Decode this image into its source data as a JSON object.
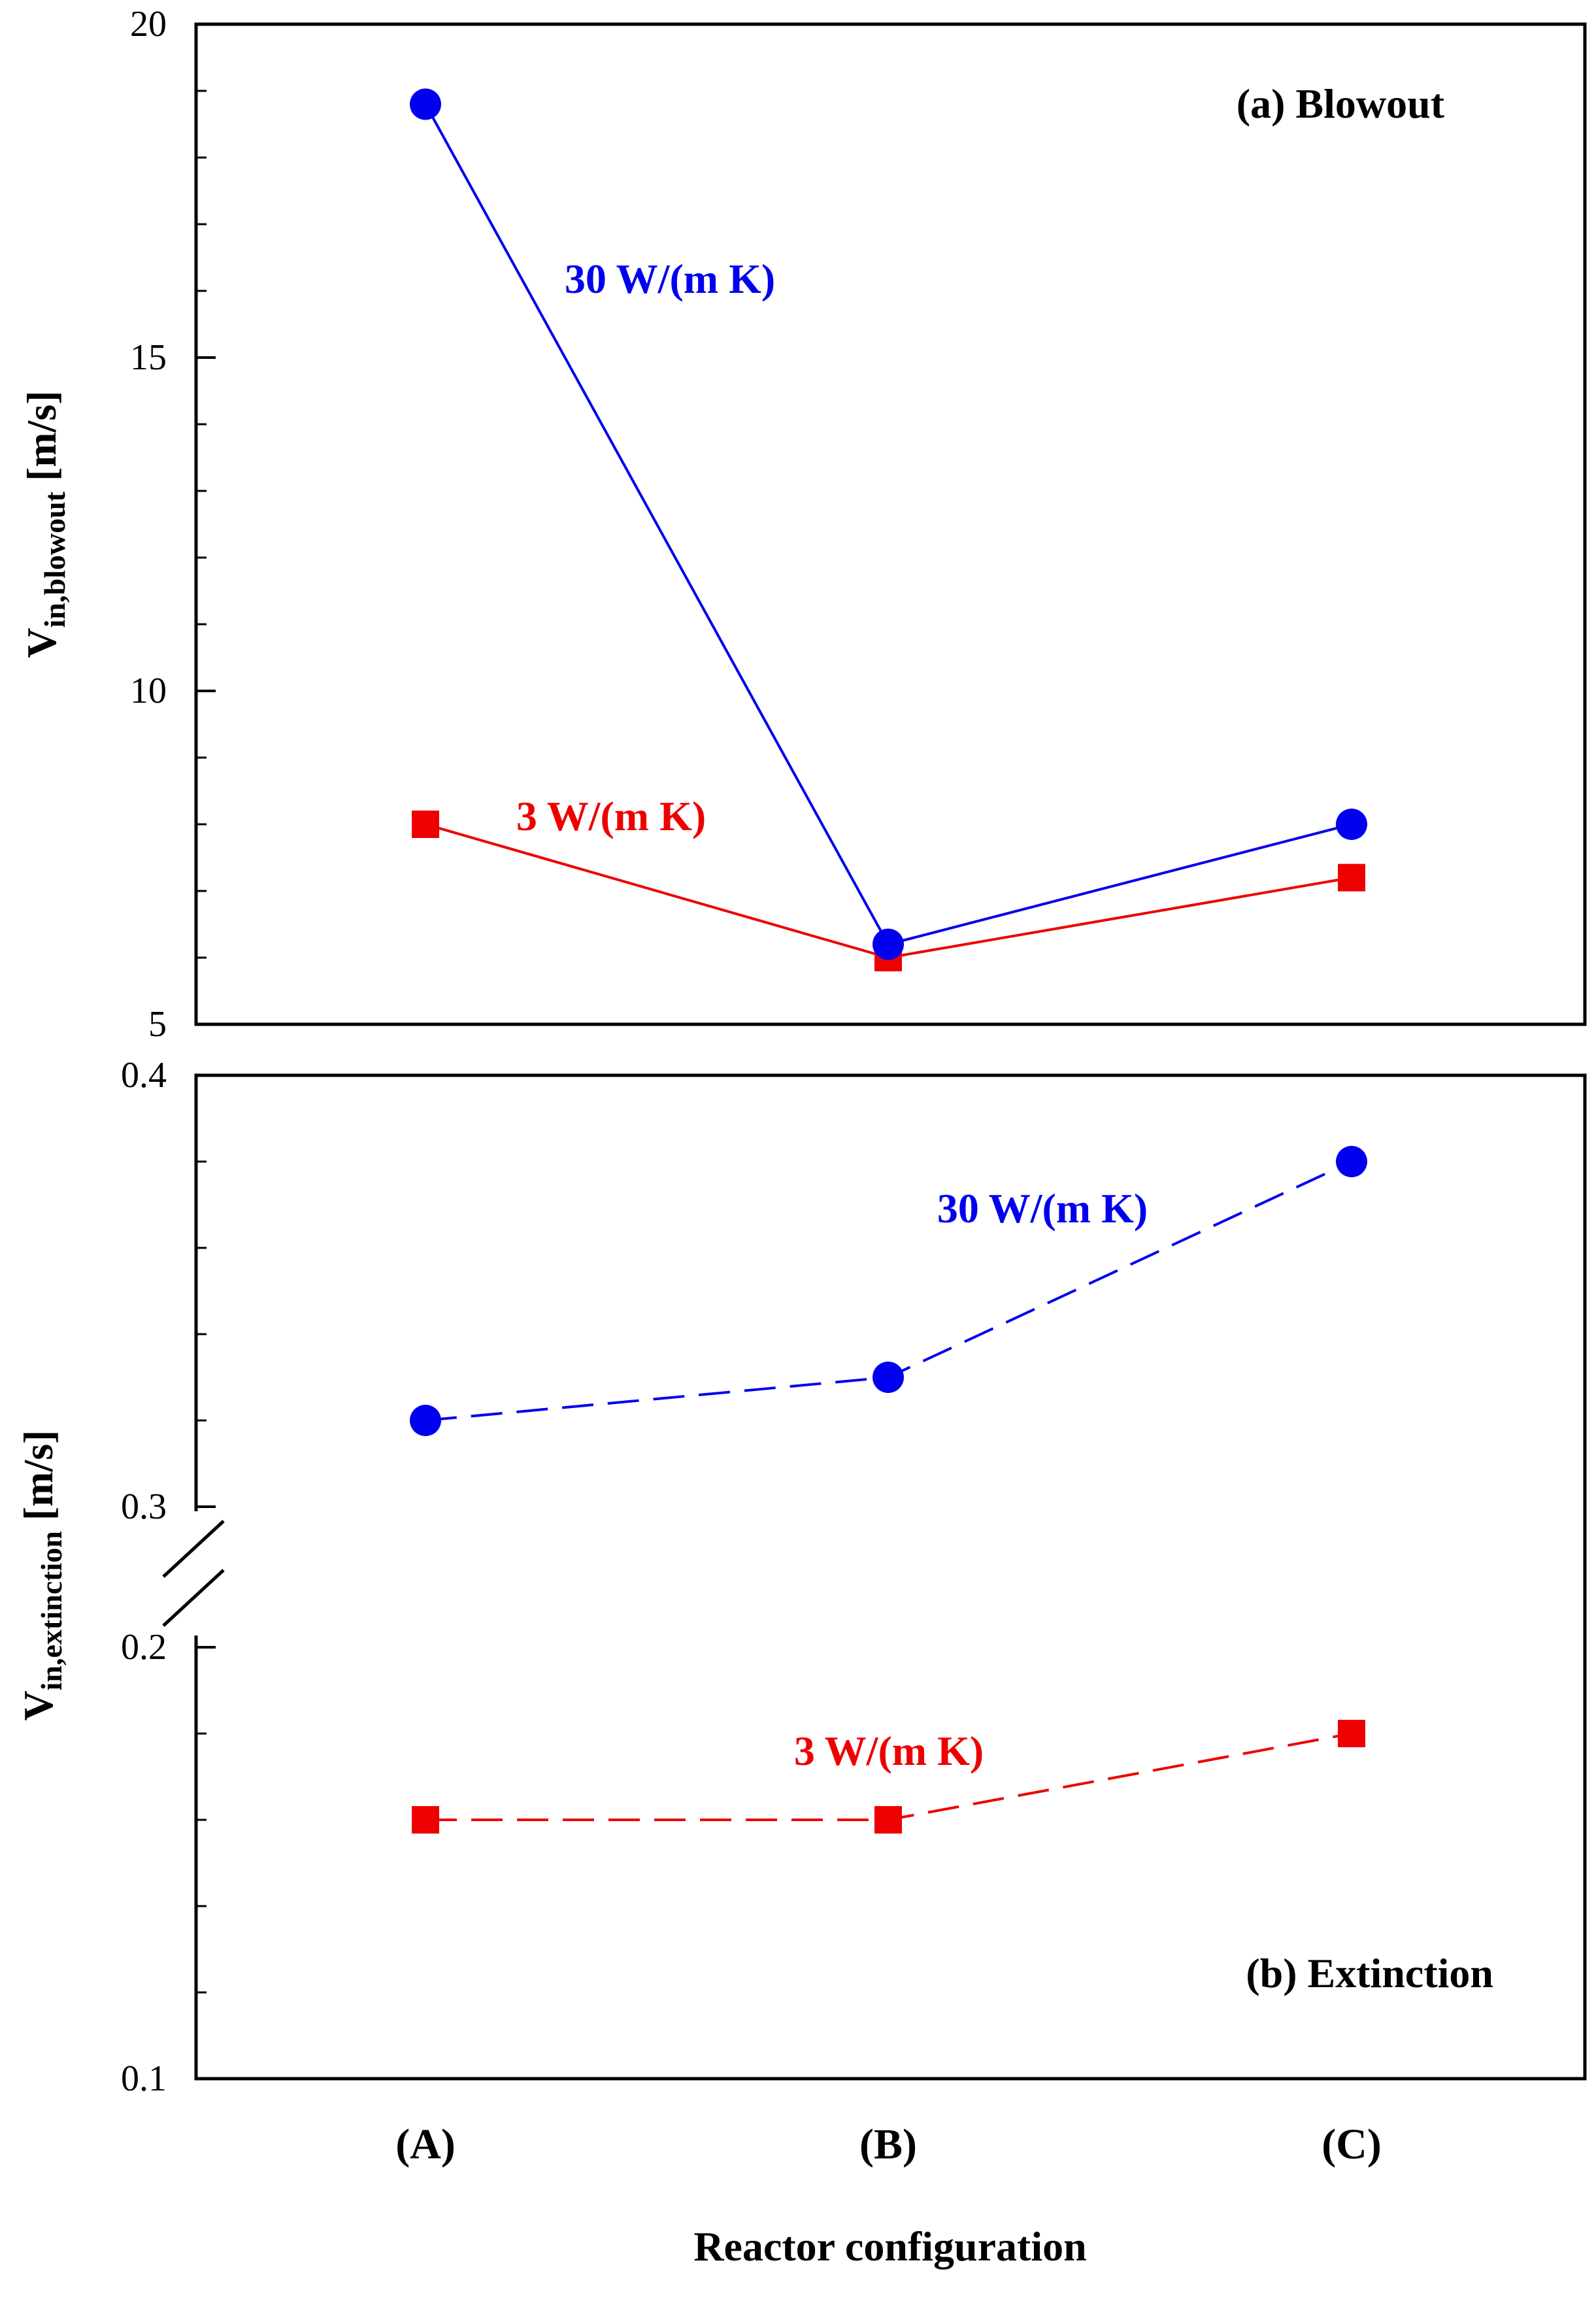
{
  "chart_data": {
    "type": "line",
    "xlabel": "Reactor configuration",
    "categories": [
      "(A)",
      "(B)",
      "(C)"
    ],
    "panels": [
      {
        "id": "blowout",
        "label": "(a) Blowout",
        "ylabel": "V",
        "ylabel_sub": "in,blowout",
        "ylabel_unit": " [m/s]",
        "ylim": [
          5,
          20
        ],
        "yticks": [
          "5",
          "10",
          "15",
          "20"
        ],
        "line_style": "solid",
        "series": [
          {
            "name": "30 W/(m K)",
            "color": "#0000ee",
            "marker": "circle",
            "values": [
              18.8,
              6.2,
              8.0
            ]
          },
          {
            "name": "3 W/(m K)",
            "color": "#ee0000",
            "marker": "square",
            "values": [
              8.0,
              6.0,
              7.2
            ]
          }
        ]
      },
      {
        "id": "extinction",
        "label": "(b) Extinction",
        "ylabel": "V",
        "ylabel_sub": "in,extinction",
        "ylabel_unit": " [m/s]",
        "axis_break": [
          0.2,
          0.3
        ],
        "ylim": [
          0.1,
          0.4
        ],
        "yticks": [
          "0.1",
          "0.2",
          "0.3",
          "0.4"
        ],
        "line_style": "dashed",
        "series": [
          {
            "name": "30 W/(m K)",
            "color": "#0000ee",
            "marker": "circle",
            "values": [
              0.32,
              0.33,
              0.38
            ]
          },
          {
            "name": "3 W/(m K)",
            "color": "#ee0000",
            "marker": "square",
            "values": [
              0.16,
              0.16,
              0.18
            ]
          }
        ]
      }
    ]
  }
}
